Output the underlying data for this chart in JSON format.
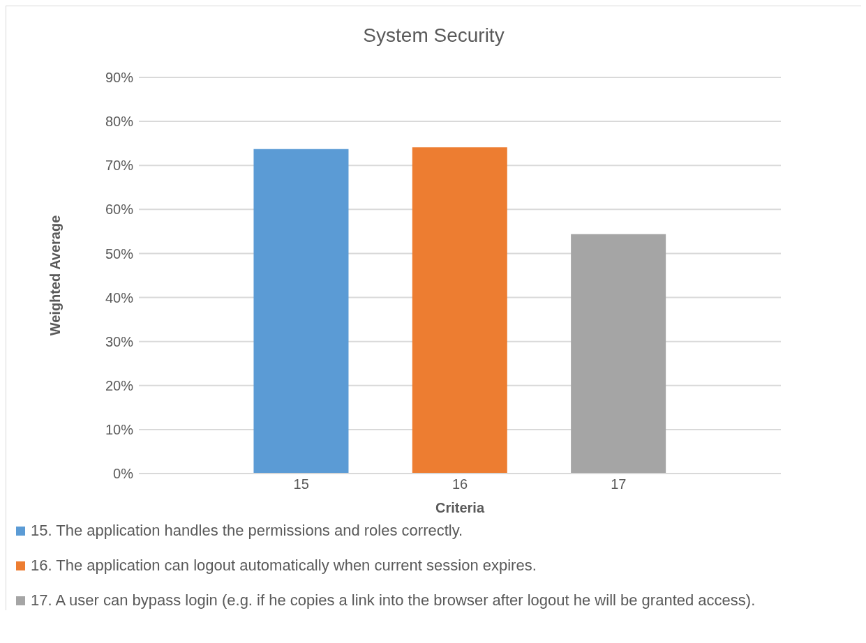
{
  "chart_data": {
    "type": "bar",
    "title": "System Security",
    "xlabel": "Criteria",
    "ylabel": "Weighted Average",
    "categories": [
      "15",
      "16",
      "17"
    ],
    "stacked": true,
    "series": [
      {
        "name": "15. The application handles the permissions and roles correctly.",
        "color": "#5b9bd5",
        "values": [
          73.7,
          null,
          null
        ]
      },
      {
        "name": "16. The application can logout automatically when current session expires.",
        "color": "#ed7d31",
        "values": [
          null,
          74.1,
          null
        ]
      },
      {
        "name": "17. A user can bypass login (e.g. if he copies a link into the browser after logout he will be granted access).",
        "color": "#a5a5a5",
        "values": [
          null,
          null,
          54.4
        ]
      }
    ],
    "ylim": [
      0,
      90
    ],
    "yticks": [
      {
        "value": 0,
        "label": "0%"
      },
      {
        "value": 10,
        "label": "10%"
      },
      {
        "value": 20,
        "label": "20%"
      },
      {
        "value": 30,
        "label": "30%"
      },
      {
        "value": 40,
        "label": "40%"
      },
      {
        "value": 50,
        "label": "50%"
      },
      {
        "value": 60,
        "label": "60%"
      },
      {
        "value": 70,
        "label": "70%"
      },
      {
        "value": 80,
        "label": "80%"
      },
      {
        "value": 90,
        "label": "90%"
      }
    ],
    "grid": "y",
    "legend": "bottom"
  }
}
